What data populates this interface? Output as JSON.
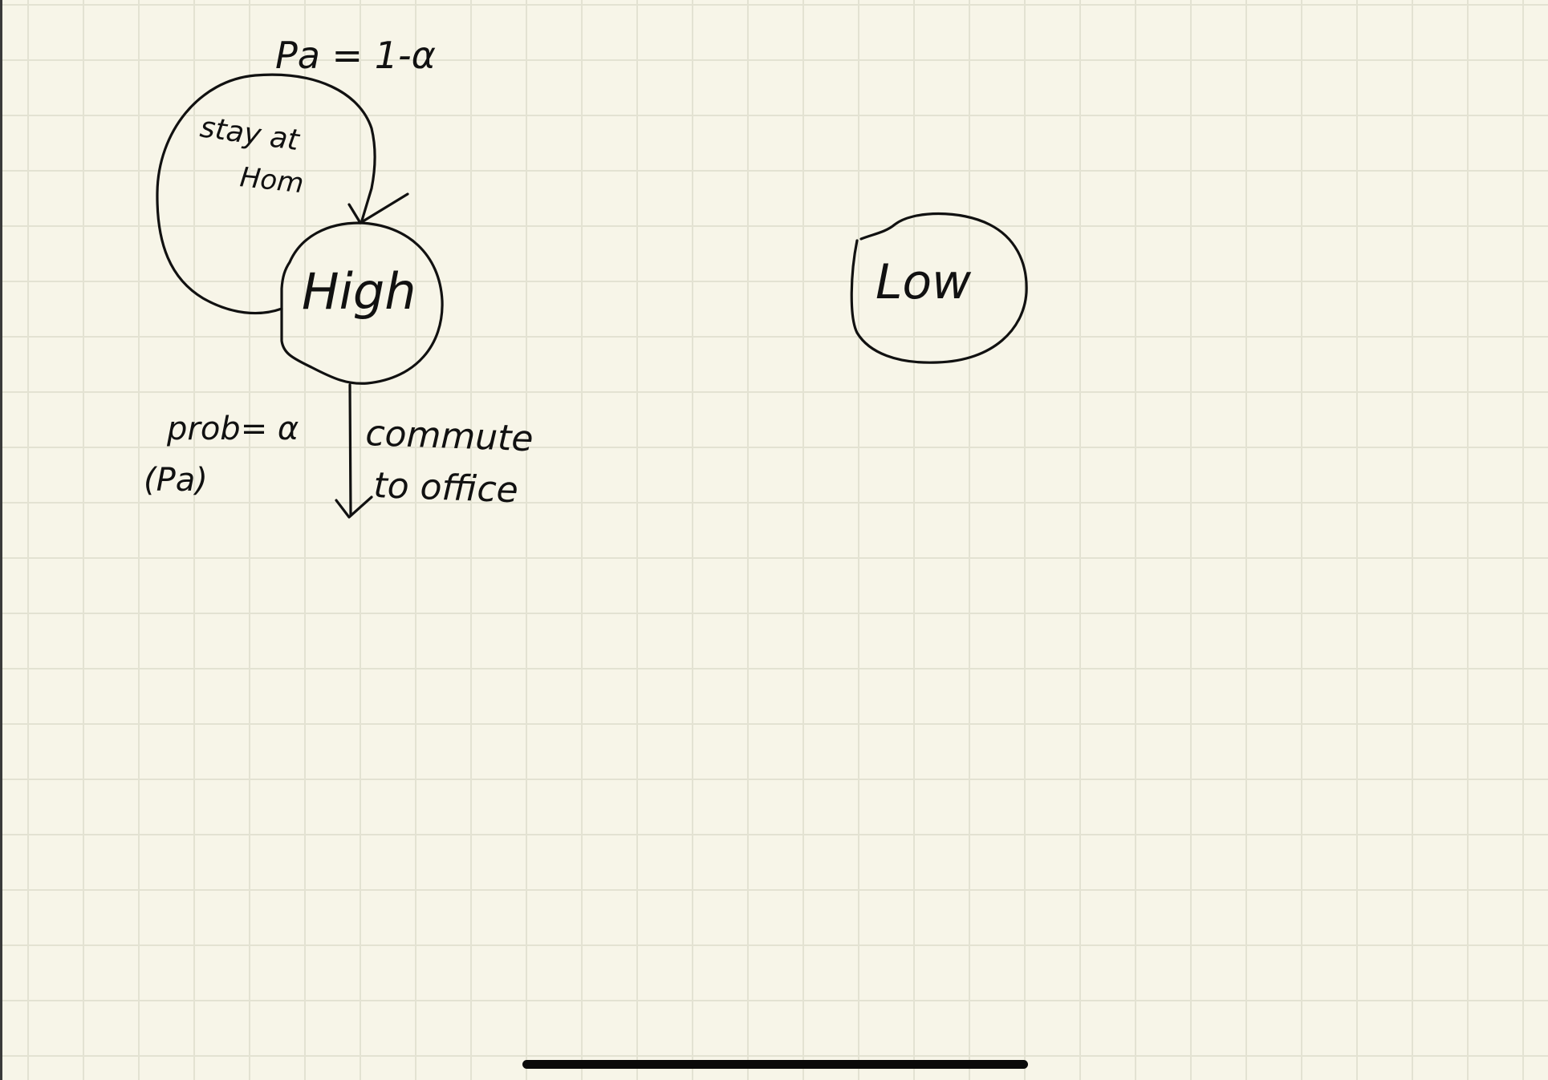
{
  "canvas": {
    "background": "#f7f5e8",
    "grid_color": "#e3e2d2",
    "ink_color": "#111111"
  },
  "diagram": {
    "nodes": [
      {
        "id": "high",
        "label": "High"
      },
      {
        "id": "low",
        "label": "Low"
      }
    ],
    "edges": [
      {
        "from": "high",
        "to": "high",
        "label": "stay at Hom",
        "prob": "Pa = 1-α"
      },
      {
        "from": "high",
        "to": "",
        "label": "commute to office",
        "prob": "prob= α",
        "prob_note": "(Pa)"
      }
    ]
  },
  "labels": {
    "high": "High",
    "low": "Low",
    "self_loop_prob": "Pa = 1-α",
    "self_loop_line1": "stay at",
    "self_loop_line2": "Hom",
    "down_prob": "prob= α",
    "down_prob_note": "(Pa)",
    "down_label_line1": "commute",
    "down_label_line2": "to office"
  }
}
